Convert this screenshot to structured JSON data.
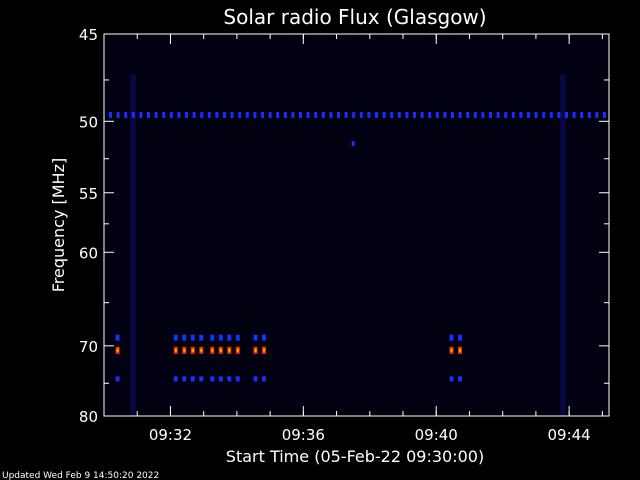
{
  "chart_data": {
    "type": "heatmap",
    "title": "Solar radio Flux (Glasgow)",
    "xlabel": "Start Time (05-Feb-22 09:30:00)",
    "ylabel": "Frequency [MHz]",
    "x_range_minutes_after_0930": [
      0,
      15.2
    ],
    "x_ticks": [
      {
        "label": "09:32",
        "minute": 2
      },
      {
        "label": "09:36",
        "minute": 6
      },
      {
        "label": "09:40",
        "minute": 10
      },
      {
        "label": "09:44",
        "minute": 14
      }
    ],
    "y_scale": "reciprocal",
    "ylim": [
      45,
      80
    ],
    "y_ticks_major": [
      45,
      50,
      55,
      60,
      70,
      80
    ],
    "y_ticks_minor": [
      47.5,
      52.5,
      57.5,
      65,
      75
    ],
    "background": "#000010",
    "interference_line": {
      "freq_mhz": 49.6,
      "color": "#1a2cff"
    },
    "bursts": [
      {
        "minute_start": 0.35,
        "minute_end": 0.55,
        "freq_mhz": 70.5
      },
      {
        "minute_start": 2.1,
        "minute_end": 2.9,
        "freq_mhz": 70.5
      },
      {
        "minute_start": 3.2,
        "minute_end": 4.1,
        "freq_mhz": 70.5
      },
      {
        "minute_start": 4.5,
        "minute_end": 5.0,
        "freq_mhz": 70.5
      },
      {
        "minute_start": 10.4,
        "minute_end": 10.8,
        "freq_mhz": 70.5
      }
    ],
    "burst_colors": {
      "outer": "#1530ff",
      "core": "#ff2a00",
      "hot": "#ffb000"
    },
    "burst_band_freqs_mhz": [
      69.0,
      70.5,
      74.3
    ]
  },
  "footer": "Updated Wed Feb  9 14:50:20 2022"
}
